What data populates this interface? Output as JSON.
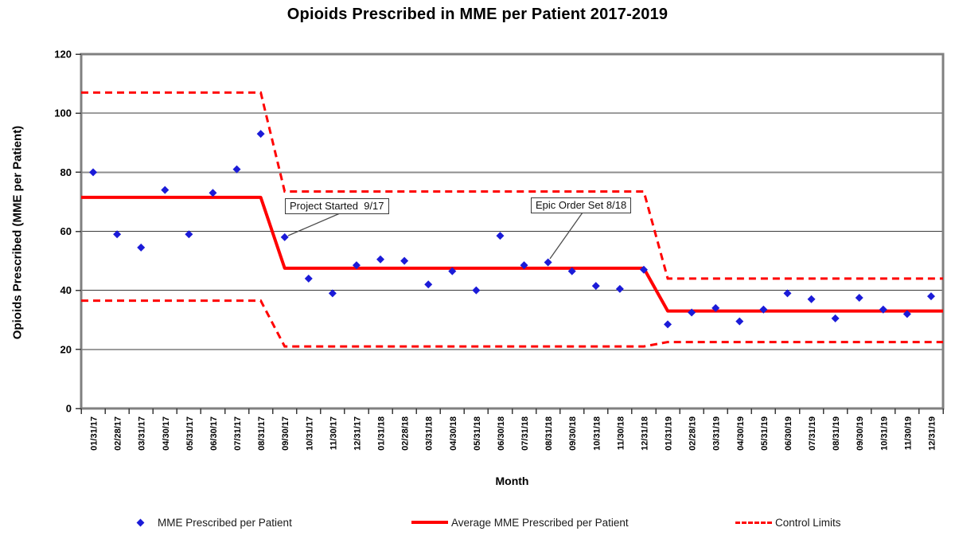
{
  "chart": {
    "title": "Opioids Prescribed in MME per Patient 2017-2019",
    "y_axis_title": "Opioids Prescribed (MME per Patient)",
    "x_axis_title": "Month"
  },
  "legend": [
    {
      "label": "MME Prescribed per Patient",
      "marker": "blue-diamond"
    },
    {
      "label": "Average MME Prescribed per Patient",
      "marker": "red-solid-line"
    },
    {
      "label": "Control Limits",
      "marker": "red-dashed-line"
    }
  ],
  "annotations": [
    {
      "text": "Project Started  9/17",
      "target": "09/30/17"
    },
    {
      "text": "Epic Order Set 8/18",
      "target": "08/31/18"
    }
  ],
  "colors": {
    "points": "#1b1bd8",
    "average_line": "#ff0000",
    "control_limits": "#ff0000",
    "frame": "#808080",
    "gridline": "#3a3a3a",
    "gridline_80": "#8c8c8c",
    "leader": "#4d4d4d"
  },
  "chart_data": {
    "type": "scatter",
    "title": "Opioids Prescribed in MME per Patient 2017-2019",
    "xlabel": "Month",
    "ylabel": "Opioids Prescribed (MME per Patient)",
    "ylim": [
      0,
      120
    ],
    "y_ticks": [
      0,
      20,
      40,
      60,
      80,
      100,
      120
    ],
    "grid": true,
    "legend_position": "bottom",
    "categories": [
      "01/31/17",
      "02/28/17",
      "03/31/17",
      "04/30/17",
      "05/31/17",
      "06/30/17",
      "07/31/17",
      "08/31/17",
      "09/30/17",
      "10/31/17",
      "11/30/17",
      "12/31/17",
      "01/31/18",
      "02/28/18",
      "03/31/18",
      "04/30/18",
      "05/31/18",
      "06/30/18",
      "07/31/18",
      "08/31/18",
      "09/30/18",
      "10/31/18",
      "11/30/18",
      "12/31/18",
      "01/31/19",
      "02/28/19",
      "03/31/19",
      "04/30/19",
      "05/31/19",
      "06/30/19",
      "07/31/19",
      "08/31/19",
      "09/30/19",
      "10/31/19",
      "11/30/19",
      "12/31/19"
    ],
    "series": [
      {
        "name": "MME Prescribed per Patient",
        "type": "points",
        "color": "#1b1bd8",
        "values": [
          80,
          59,
          54.5,
          74,
          59,
          73,
          81,
          93,
          58,
          44,
          39,
          48.5,
          50.5,
          50,
          42,
          46.5,
          40,
          58.5,
          48.5,
          49.5,
          46.5,
          41.5,
          40.5,
          47,
          28.5,
          32.5,
          34,
          29.5,
          33.5,
          39,
          37,
          30.5,
          37.5,
          33.5,
          32,
          38
        ]
      },
      {
        "name": "Average MME Prescribed per Patient",
        "type": "step-line",
        "style": "solid",
        "color": "#ff0000",
        "phases": [
          {
            "from": "01/31/17",
            "to": "08/31/17",
            "value": 71.5
          },
          {
            "from": "09/30/17",
            "to": "12/31/18",
            "value": 47.5
          },
          {
            "from": "01/31/19",
            "to": "12/31/19",
            "value": 33
          }
        ]
      },
      {
        "name": "Control Limits",
        "type": "step-line",
        "style": "dashed",
        "color": "#ff0000",
        "upper_phases": [
          {
            "from": "01/31/17",
            "to": "08/31/17",
            "value": 107
          },
          {
            "from": "09/30/17",
            "to": "12/31/18",
            "value": 73.5
          },
          {
            "from": "01/31/19",
            "to": "12/31/19",
            "value": 44
          }
        ],
        "lower_phases": [
          {
            "from": "01/31/17",
            "to": "08/31/17",
            "value": 36.5
          },
          {
            "from": "09/30/17",
            "to": "12/31/18",
            "value": 21
          },
          {
            "from": "01/31/19",
            "to": "12/31/19",
            "value": 22.5
          }
        ]
      }
    ]
  }
}
